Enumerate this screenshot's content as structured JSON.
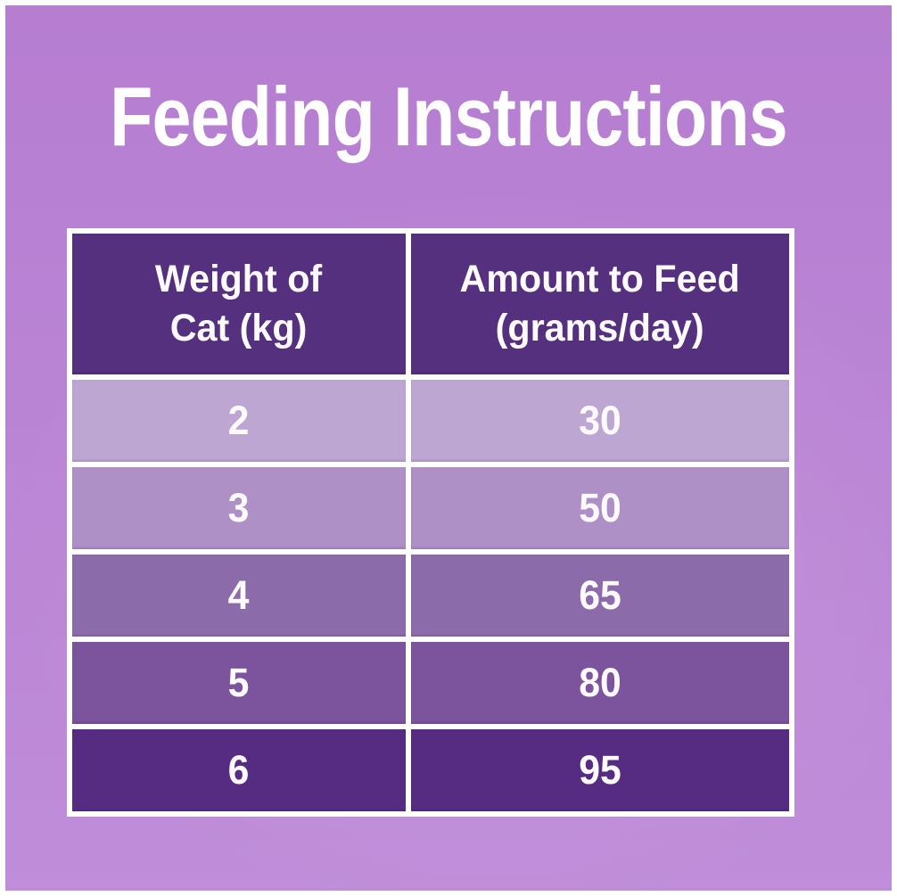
{
  "page": {
    "title": "Feeding Instructions",
    "background_top_color": "#b67dd1",
    "background_bottom_color": "#bf8dd9",
    "frame_color": "#ffffff",
    "title_color": "#ffffff"
  },
  "table": {
    "border_color": "#ffffff",
    "header_bg": "#54307e",
    "header_text_color": "#ffffff",
    "row_colors": [
      "#bda6d2",
      "#ae90c6",
      "#8c6bab",
      "#7c549d",
      "#562c83"
    ],
    "columns": [
      {
        "label_line1": "Weight of",
        "label_line2": "Cat (kg)"
      },
      {
        "label_line1": "Amount to Feed",
        "label_line2": "(grams/day)"
      }
    ],
    "rows": [
      {
        "weight_kg": "2",
        "amount_g_day": "30"
      },
      {
        "weight_kg": "3",
        "amount_g_day": "50"
      },
      {
        "weight_kg": "4",
        "amount_g_day": "65"
      },
      {
        "weight_kg": "5",
        "amount_g_day": "80"
      },
      {
        "weight_kg": "6",
        "amount_g_day": "95"
      }
    ]
  },
  "chart_data": {
    "type": "table",
    "title": "Feeding Instructions",
    "columns": [
      "Weight of Cat (kg)",
      "Amount to Feed (grams/day)"
    ],
    "rows": [
      [
        2,
        30
      ],
      [
        3,
        50
      ],
      [
        4,
        65
      ],
      [
        5,
        80
      ],
      [
        6,
        95
      ]
    ]
  }
}
